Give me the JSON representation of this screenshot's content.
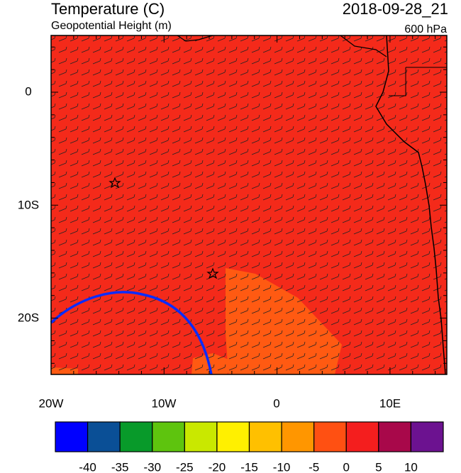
{
  "header": {
    "title": "Temperature (C)",
    "subtitle": "Geopotential Height (m)",
    "time": "2018-09-28_21",
    "level": "600 hPa"
  },
  "map": {
    "lat_labels": [
      "0",
      "10S",
      "20S"
    ],
    "lon_labels": [
      "20W",
      "10W",
      "0",
      "10E"
    ]
  },
  "colorbar": {
    "labels": [
      "-40",
      "-35",
      "-30",
      "-25",
      "-20",
      "-15",
      "-10",
      "-5",
      "0",
      "5",
      "10"
    ],
    "colors": [
      "#0000ff",
      "#0a4f96",
      "#089a2a",
      "#5ec40e",
      "#c9e800",
      "#fff000",
      "#ffc000",
      "#ff9600",
      "#ff5012",
      "#f41e1e",
      "#a8084a",
      "#6c1290"
    ]
  }
}
